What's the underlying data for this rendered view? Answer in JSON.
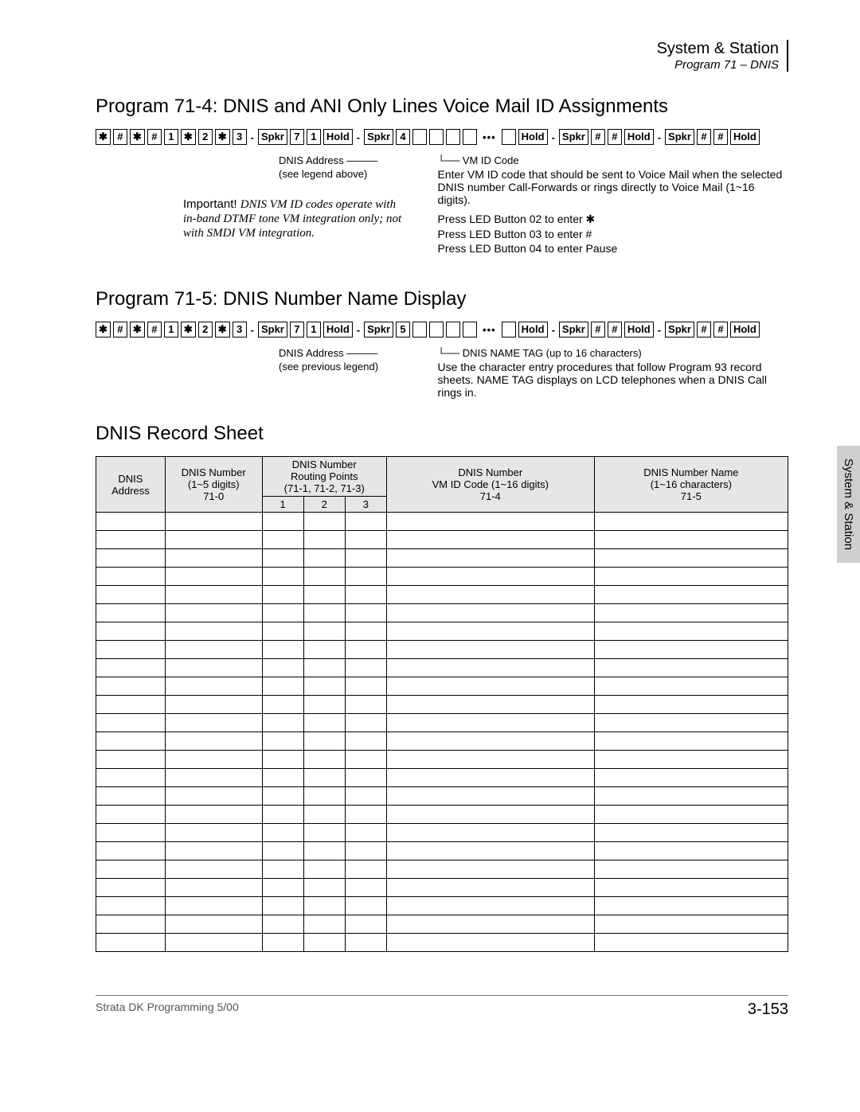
{
  "header": {
    "main": "System & Station",
    "sub": "Program 71 – DNIS"
  },
  "section1": {
    "title": "Program 71-4: DNIS and ANI Only Lines Voice Mail ID Assignments",
    "keyseq_prefix": [
      "✱",
      "#",
      "✱",
      "#",
      "1",
      "✱",
      "2",
      "✱",
      "3"
    ],
    "labels": {
      "spkr": "Spkr",
      "hold": "Hold"
    },
    "digit_a": "7",
    "digit_b": "1",
    "prog": "4",
    "annot_left_line1": "DNIS Address",
    "annot_left_line2": "(see legend above)",
    "annot_right_title": "VM ID Code",
    "annot_right_body": "Enter VM ID code that should be sent to Voice Mail when the selected DNIS number Call-Forwards or rings directly to Voice Mail (1~16 digits).",
    "annot_right_l1": "Press LED Button 02 to enter ✱",
    "annot_right_l2": "Press LED Button 03 to enter #",
    "annot_right_l3": "Press LED Button 04 to enter Pause",
    "important_label": "Important!",
    "important_body": "DNIS VM ID codes operate with in-band DTMF tone VM integration only; not with SMDI VM integration."
  },
  "section2": {
    "title": "Program 71-5: DNIS Number Name Display",
    "prog": "5",
    "annot_left_line1": "DNIS Address",
    "annot_left_line2": "(see previous legend)",
    "annot_right_title": "DNIS NAME TAG (up to 16 characters)",
    "annot_right_body": "Use the character entry procedures that follow Program 93 record sheets. NAME TAG displays on LCD telephones when a DNIS Call rings in."
  },
  "record_sheet": {
    "title": "DNIS Record Sheet",
    "headers": {
      "c1": "DNIS Address",
      "c2_line1": "DNIS Number",
      "c2_line2": "(1~5 digits)",
      "c2_line3": "71-0",
      "c3_line1": "DNIS Number",
      "c3_line2": "Routing Points",
      "c3_line3": "(71-1, 71-2, 71-3)",
      "c3_sub1": "1",
      "c3_sub2": "2",
      "c3_sub3": "3",
      "c4_line1": "DNIS Number",
      "c4_line2": "VM ID Code (1~16 digits)",
      "c4_line3": "71-4",
      "c5_line1": "DNIS Number Name",
      "c5_line2": "(1~16 characters)",
      "c5_line3": "71-5"
    },
    "row_count": 24
  },
  "side_tab": "System & Station",
  "footer": {
    "left": "Strata DK Programming    5/00",
    "right": "3-153"
  },
  "style": {
    "border_color": "#000000",
    "header_bg": "#e6e6e6",
    "tab_bg": "#cfcfcf"
  }
}
